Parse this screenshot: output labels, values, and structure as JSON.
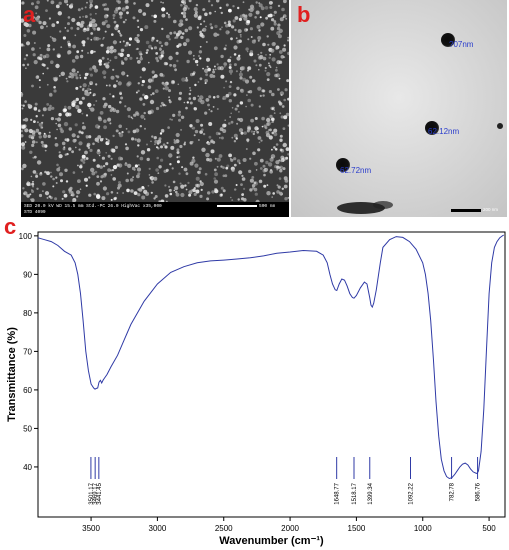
{
  "panels": {
    "a": {
      "letter": "a",
      "footer_line1": "SED 20.0 kV  WD 15.5 mm  Std.-PC 26.0  HighVac  x35,000",
      "footer_line2": "STD 4099",
      "scale_label": "500 nm"
    },
    "b": {
      "letter": "b",
      "particles": [
        {
          "label": "?07nm"
        },
        {
          "label": "62.12nm"
        },
        {
          "label": "62.72nm"
        }
      ],
      "scale_label": "200 nm"
    },
    "c": {
      "letter": "c"
    }
  },
  "colors": {
    "panel_letter": "#e02020",
    "spectrum_line": "#2f3aa6",
    "np_label": "#2a3dcc"
  },
  "chart_data": {
    "type": "line",
    "xlabel": "Wavenumber (cm⁻¹)",
    "ylabel": "Transmittance (%)",
    "xlim": [
      3900,
      380
    ],
    "ylim": [
      27,
      101
    ],
    "x_ticks": [
      3500,
      3000,
      2500,
      2000,
      1500,
      1000,
      500
    ],
    "y_ticks": [
      40,
      50,
      60,
      70,
      80,
      90,
      100
    ],
    "grid": false,
    "series": [
      {
        "x": [
          3900,
          3850,
          3800,
          3750,
          3700,
          3650,
          3620,
          3600,
          3580,
          3560,
          3540,
          3520,
          3500,
          3480,
          3470,
          3460,
          3450,
          3440,
          3430,
          3420,
          3410,
          3400,
          3380,
          3350,
          3300,
          3250,
          3200,
          3100,
          3000,
          2900,
          2800,
          2700,
          2600,
          2500,
          2400,
          2300,
          2200,
          2100,
          2000,
          1900,
          1800,
          1750,
          1720,
          1700,
          1680,
          1660,
          1648,
          1630,
          1610,
          1590,
          1570,
          1550,
          1530,
          1518,
          1500,
          1470,
          1440,
          1420,
          1400,
          1390,
          1380,
          1370,
          1350,
          1320,
          1300,
          1250,
          1200,
          1150,
          1100,
          1050,
          1000,
          980,
          960,
          940,
          920,
          900,
          880,
          860,
          840,
          820,
          800,
          780,
          760,
          740,
          720,
          700,
          680,
          660,
          640,
          620,
          600,
          590,
          580,
          560,
          540,
          520,
          500,
          480,
          460,
          440,
          420,
          400,
          390
        ],
        "y": [
          99.5,
          99,
          98.5,
          97.5,
          96,
          95,
          93,
          90,
          85,
          78,
          70,
          65,
          61.5,
          60.5,
          60.2,
          60.4,
          60.5,
          62,
          62.5,
          61.8,
          62.5,
          63,
          64,
          66,
          69,
          73,
          77,
          83,
          87.5,
          90.5,
          92,
          93,
          93.5,
          93.7,
          94,
          94.3,
          94.8,
          95.5,
          95.8,
          96.2,
          96,
          95,
          93,
          90,
          87.5,
          86,
          85.8,
          87.5,
          88.8,
          88.5,
          87,
          85,
          84,
          83.8,
          84.5,
          86.5,
          88,
          87.5,
          84,
          82,
          81.5,
          82.5,
          86,
          93,
          97,
          99,
          99.8,
          99.6,
          98.5,
          96.5,
          93,
          90,
          85,
          78,
          68,
          57,
          48,
          42,
          39,
          37.5,
          37,
          37.2,
          38,
          39,
          40,
          40.7,
          41,
          40.5,
          39.5,
          38.7,
          38.4,
          38.3,
          39,
          44,
          55,
          70,
          85,
          93,
          97,
          98.5,
          99.5,
          100,
          100.2
        ]
      }
    ],
    "peak_labels": [
      {
        "x": 3501.17,
        "label": "3501.17"
      },
      {
        "x": 3469.17,
        "label": "3469.17"
      },
      {
        "x": 3441.45,
        "label": "3441.45"
      },
      {
        "x": 1648.77,
        "label": "1648.77"
      },
      {
        "x": 1518.17,
        "label": "1518.17"
      },
      {
        "x": 1399.34,
        "label": "1399.34"
      },
      {
        "x": 1092.22,
        "label": "1092.22"
      },
      {
        "x": 782.78,
        "label": "782.78"
      },
      {
        "x": 586.76,
        "label": "586.76"
      }
    ]
  }
}
